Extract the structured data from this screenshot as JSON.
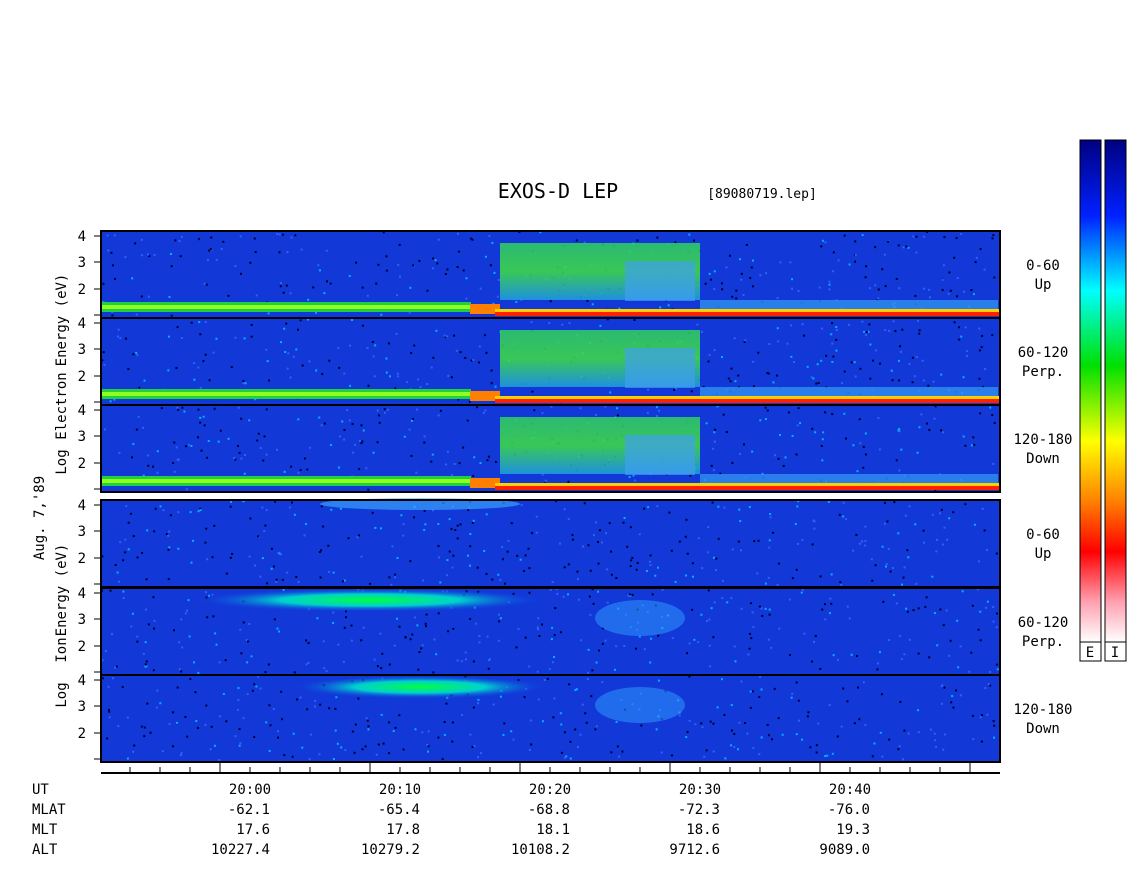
{
  "header": {
    "title": "EXOS-D LEP",
    "file": "[89080719.lep]"
  },
  "date": "Aug. 7,'89",
  "electron_axis": [
    "Log",
    "Electron",
    "Energy (eV)"
  ],
  "ion_axis": [
    "Log",
    "Ion",
    "Energy (eV)"
  ],
  "panels": [
    {
      "label": "0-60",
      "sublabel": "Up"
    },
    {
      "label": "60-120",
      "sublabel": "Perp."
    },
    {
      "label": "120-180",
      "sublabel": "Down"
    },
    {
      "label": "0-60",
      "sublabel": "Up"
    },
    {
      "label": "60-120",
      "sublabel": "Perp."
    },
    {
      "label": "120-180",
      "sublabel": "Down"
    }
  ],
  "yticks": [
    4,
    3,
    2
  ],
  "colorbar_labels": [
    "E",
    "I"
  ],
  "footer": {
    "rows": [
      {
        "name": "UT",
        "values": [
          "20:00",
          "20:10",
          "20:20",
          "20:30",
          "20:40"
        ]
      },
      {
        "name": "MLAT",
        "values": [
          "-62.1",
          "-65.4",
          "-68.8",
          "-72.3",
          "-76.0"
        ]
      },
      {
        "name": "MLT",
        "values": [
          "17.6",
          "17.8",
          "18.1",
          "18.6",
          "19.3"
        ]
      },
      {
        "name": "ALT",
        "values": [
          "10227.4",
          "10279.2",
          "10108.2",
          "9712.6",
          "9089.0"
        ]
      }
    ]
  }
}
